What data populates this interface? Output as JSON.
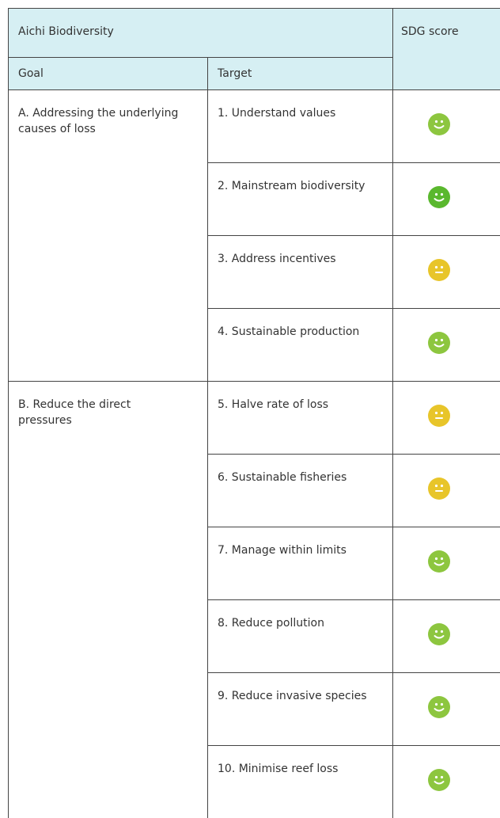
{
  "header": {
    "title": "Aichi Biodiversity",
    "score": "SDG score",
    "goal": "Goal",
    "target": "Target"
  },
  "goals": [
    {
      "label": "A. Addressing the underlying causes of loss",
      "targets": [
        {
          "label": "1. Understand values",
          "color": "#8dc63f",
          "face": "smile"
        },
        {
          "label": "2. Mainstream biodiversity",
          "color": "#5ab82e",
          "face": "smile"
        },
        {
          "label": "3. Address incentives",
          "color": "#e8c52a",
          "face": "neutral"
        },
        {
          "label": "4. Sustainable production",
          "color": "#8dc63f",
          "face": "smile"
        }
      ]
    },
    {
      "label": "B. Reduce the direct pressures",
      "targets": [
        {
          "label": "5. Halve rate of loss",
          "color": "#e8c52a",
          "face": "neutral"
        },
        {
          "label": "6. Sustainable fisheries",
          "color": "#e8c52a",
          "face": "neutral"
        },
        {
          "label": "7. Manage within limits",
          "color": "#8dc63f",
          "face": "smile"
        },
        {
          "label": "8. Reduce pollution",
          "color": "#8dc63f",
          "face": "smile"
        },
        {
          "label": "9. Reduce invasive species",
          "color": "#8dc63f",
          "face": "smile"
        },
        {
          "label": "10. Minimise reef loss",
          "color": "#8dc63f",
          "face": "smile"
        }
      ]
    }
  ]
}
